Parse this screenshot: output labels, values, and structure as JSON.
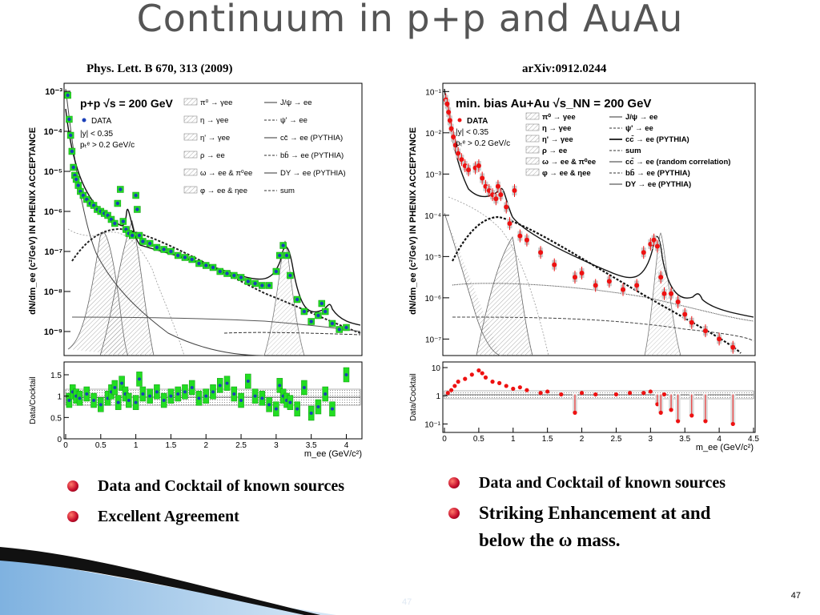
{
  "slide": {
    "title": "Continuum in p+p and AuAu",
    "page_number": "47",
    "page_number_faint": "47"
  },
  "left": {
    "reference": "Phys. Lett. B 670, 313 (2009)",
    "bullets": [
      "Data and Cocktail of known sources",
      "Excellent Agreement"
    ]
  },
  "right": {
    "reference": "arXiv:0912.0244",
    "bullets": [
      "Data and Cocktail of known sources",
      "Striking Enhancement at and below the ω mass."
    ]
  },
  "chart_data": [
    {
      "type": "scatter",
      "panel": "main",
      "ylabel": "dN/dm_ee (c²/GeV) IN PHENIX ACCEPTANCE",
      "xlim": [
        0,
        4.2
      ],
      "ylim_log10": [
        -9.6,
        -2.8
      ],
      "ytick_labels": [
        "10⁻³",
        "10⁻⁴",
        "10⁻⁵",
        "10⁻⁶",
        "10⁻⁷",
        "10⁻⁸",
        "10⁻⁹"
      ],
      "ytick_values": [
        -3,
        -4,
        -5,
        -6,
        -7,
        -8,
        -9
      ],
      "labels": {
        "system": "p+p √s = 200 GeV",
        "data": "DATA",
        "cut1": "|y| < 0.35",
        "cut2": "pₜᵉ > 0.2 GeV/c"
      },
      "legend": [
        "π⁰ → γee",
        "η → γee",
        "η' → γee",
        "ρ → ee",
        "ω → ee & π⁰ee",
        "φ → ee & ηee",
        "J/ψ → ee",
        "ψ' → ee",
        "cc̄ → ee (PYTHIA)",
        "bb̄ → ee (PYTHIA)",
        "DY → ee (PYTHIA)",
        "sum"
      ],
      "series": [
        {
          "name": "DATA",
          "color": "#1a3fb8",
          "box_color": "#22dd22",
          "x": [
            0.03,
            0.05,
            0.07,
            0.09,
            0.11,
            0.13,
            0.15,
            0.18,
            0.21,
            0.25,
            0.3,
            0.35,
            0.4,
            0.45,
            0.5,
            0.55,
            0.6,
            0.65,
            0.7,
            0.74,
            0.78,
            0.82,
            0.86,
            0.9,
            0.95,
            1.0,
            1.02,
            1.05,
            1.1,
            1.2,
            1.3,
            1.4,
            1.5,
            1.6,
            1.7,
            1.8,
            1.9,
            2.0,
            2.1,
            2.2,
            2.3,
            2.4,
            2.5,
            2.6,
            2.7,
            2.8,
            2.9,
            3.0,
            3.05,
            3.1,
            3.15,
            3.2,
            3.3,
            3.4,
            3.5,
            3.6,
            3.65,
            3.7,
            3.8,
            3.9,
            4.0
          ],
          "log10_y": [
            -3.1,
            -3.7,
            -4.1,
            -4.5,
            -4.9,
            -5.1,
            -5.2,
            -5.35,
            -5.5,
            -5.6,
            -5.7,
            -5.8,
            -5.85,
            -5.95,
            -6.0,
            -6.05,
            -6.1,
            -6.2,
            -6.3,
            -5.8,
            -5.45,
            -6.25,
            -6.45,
            -6.55,
            -6.6,
            -5.6,
            -5.95,
            -6.6,
            -6.75,
            -6.8,
            -6.9,
            -6.95,
            -7.0,
            -7.1,
            -7.15,
            -7.2,
            -7.3,
            -7.35,
            -7.4,
            -7.5,
            -7.55,
            -7.6,
            -7.65,
            -7.75,
            -7.8,
            -7.85,
            -7.85,
            -7.5,
            -7.1,
            -6.85,
            -7.1,
            -7.6,
            -8.2,
            -8.5,
            -8.75,
            -8.6,
            -8.3,
            -8.5,
            -8.8,
            -8.95,
            -8.9
          ]
        }
      ]
    },
    {
      "type": "scatter",
      "panel": "ratio",
      "ylabel": "Data/Cocktail",
      "xlabel": "m_ee (GeV/c²)",
      "xlim": [
        0,
        4.2
      ],
      "ylim": [
        0,
        1.8
      ],
      "xtick_labels": [
        "0",
        "0.5",
        "1",
        "1.5",
        "2",
        "2.5",
        "3",
        "3.5",
        "4"
      ],
      "ytick_labels": [
        "0",
        "0.5",
        "1",
        "1.5"
      ],
      "series": [
        {
          "name": "DATA",
          "x": [
            0.05,
            0.1,
            0.15,
            0.2,
            0.3,
            0.4,
            0.5,
            0.6,
            0.65,
            0.7,
            0.75,
            0.8,
            0.85,
            0.9,
            1.0,
            1.05,
            1.1,
            1.2,
            1.3,
            1.4,
            1.5,
            1.6,
            1.7,
            1.8,
            1.9,
            2.0,
            2.1,
            2.2,
            2.3,
            2.4,
            2.5,
            2.6,
            2.7,
            2.8,
            2.9,
            3.0,
            3.05,
            3.1,
            3.15,
            3.2,
            3.3,
            3.4,
            3.5,
            3.6,
            3.7,
            3.8,
            4.0
          ],
          "y": [
            0.9,
            1.1,
            1.0,
            0.95,
            1.05,
            0.9,
            0.8,
            0.95,
            1.1,
            1.2,
            0.85,
            1.3,
            1.05,
            0.9,
            0.85,
            1.4,
            1.05,
            1.0,
            1.1,
            0.9,
            1.0,
            1.05,
            1.1,
            1.2,
            0.95,
            1.0,
            1.1,
            1.25,
            1.3,
            1.05,
            0.9,
            1.35,
            1.0,
            0.95,
            0.8,
            0.7,
            1.25,
            1.0,
            0.9,
            0.85,
            0.7,
            1.2,
            0.6,
            0.75,
            1.05,
            0.7,
            1.5
          ]
        }
      ]
    },
    {
      "type": "scatter",
      "panel": "main",
      "ylabel": "dN/dm_ee (c²/GeV) IN PHENIX ACCEPTANCE",
      "xlim": [
        0,
        4.5
      ],
      "ylim_log10": [
        -7.4,
        -0.8
      ],
      "ytick_labels": [
        "10⁻¹",
        "10⁻²",
        "10⁻³",
        "10⁻⁴",
        "10⁻⁵",
        "10⁻⁶",
        "10⁻⁷"
      ],
      "ytick_values": [
        -1,
        -2,
        -3,
        -4,
        -5,
        -6,
        -7
      ],
      "labels": {
        "system": "min. bias Au+Au √s_NN = 200 GeV",
        "data": "DATA",
        "cut1": "|y| < 0.35",
        "cut2": "pₜᵉ > 0.2 GeV/c"
      },
      "legend": [
        "π⁰ → γee",
        "η → γee",
        "η' → γee",
        "ρ → ee",
        "ω → ee & π⁰ee",
        "φ → ee & ηee",
        "J/ψ → ee",
        "ψ' → ee",
        "cc̄ → ee (PYTHIA)",
        "sum",
        "cc̄ → ee (random correlation)",
        "bb̄ → ee (PYTHIA)",
        "DY → ee (PYTHIA)"
      ],
      "series": [
        {
          "name": "DATA",
          "color": "#ee1111",
          "x": [
            0.02,
            0.04,
            0.06,
            0.08,
            0.1,
            0.13,
            0.16,
            0.2,
            0.25,
            0.3,
            0.35,
            0.45,
            0.5,
            0.55,
            0.6,
            0.65,
            0.7,
            0.75,
            0.78,
            0.82,
            0.9,
            0.95,
            1.02,
            1.1,
            1.2,
            1.4,
            1.6,
            1.9,
            2.0,
            2.2,
            2.4,
            2.6,
            2.8,
            2.9,
            3.0,
            3.05,
            3.1,
            3.15,
            3.2,
            3.3,
            3.4,
            3.5,
            3.6,
            3.8,
            4.0,
            4.2
          ],
          "log10_y": [
            -1.2,
            -1.3,
            -1.5,
            -1.7,
            -1.9,
            -2.1,
            -2.3,
            -2.5,
            -2.65,
            -2.8,
            -2.9,
            -2.85,
            -2.8,
            -3.1,
            -3.3,
            -3.4,
            -3.5,
            -3.6,
            -3.3,
            -3.5,
            -3.8,
            -4.2,
            -3.4,
            -4.5,
            -4.6,
            -4.9,
            -5.2,
            -5.5,
            -5.4,
            -5.7,
            -5.6,
            -5.8,
            -5.7,
            -4.9,
            -4.7,
            -4.6,
            -4.75,
            -5.5,
            -5.9,
            -5.9,
            -6.1,
            -6.4,
            -6.6,
            -6.8,
            -7.0,
            -7.2
          ]
        }
      ]
    },
    {
      "type": "scatter",
      "panel": "ratio",
      "ylabel": "Data/Cocktail",
      "xlabel": "m_ee (GeV/c²)",
      "xlim": [
        0,
        4.5
      ],
      "ylim_log10": [
        -1.3,
        1.2
      ],
      "xtick_labels": [
        "0",
        "0.5",
        "1",
        "1.5",
        "2",
        "2.5",
        "3",
        "3.5",
        "4",
        "4.5"
      ],
      "ytick_labels": [
        "10",
        "1",
        "10⁻¹"
      ],
      "series": [
        {
          "name": "DATA",
          "x": [
            0.05,
            0.1,
            0.15,
            0.2,
            0.3,
            0.4,
            0.5,
            0.55,
            0.6,
            0.7,
            0.8,
            0.9,
            1.0,
            1.1,
            1.2,
            1.4,
            1.5,
            1.7,
            1.9,
            2.0,
            2.2,
            2.5,
            2.7,
            2.9,
            3.0,
            3.1,
            3.15,
            3.2,
            3.3,
            3.4,
            3.6,
            3.8,
            4.2
          ],
          "log10_y": [
            0.1,
            0.2,
            0.35,
            0.5,
            0.6,
            0.75,
            0.9,
            0.8,
            0.65,
            0.5,
            0.45,
            0.35,
            0.25,
            0.3,
            0.2,
            0.1,
            0.15,
            0.05,
            -0.6,
            0.1,
            0.05,
            0.05,
            0.1,
            0.1,
            0.15,
            -0.3,
            -0.6,
            0.05,
            -0.5,
            -0.9,
            -0.7,
            -0.9,
            -1.0
          ]
        }
      ]
    }
  ]
}
